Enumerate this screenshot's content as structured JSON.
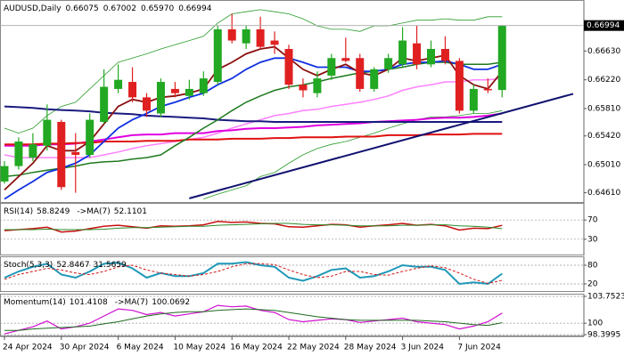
{
  "chart_data": [
    {
      "type": "candlestick",
      "symbol": "AUDUSD,Daily",
      "ohlc_labels": [
        "0.66075",
        "0.67002",
        "0.65970",
        "0.66994"
      ],
      "categories": [
        "24 Apr 2024",
        null,
        null,
        null,
        "30 Apr 2024",
        null,
        null,
        null,
        "6 May 2024",
        null,
        null,
        null,
        "10 May 2024",
        null,
        null,
        null,
        "16 May 2024",
        null,
        null,
        null,
        "22 May 2024",
        null,
        null,
        null,
        "28 May 2024",
        null,
        null,
        null,
        "3 Jun 2024",
        null,
        null,
        null,
        "7 Jun 2024",
        null,
        null,
        null
      ],
      "open": [
        0.6477,
        0.6499,
        0.6511,
        0.6528,
        0.6562,
        0.6519,
        0.6515,
        0.6562,
        0.6609,
        0.6619,
        0.6597,
        0.6574,
        0.6609,
        0.6599,
        0.6603,
        0.6619,
        0.6694,
        0.6674,
        0.6694,
        0.6678,
        0.6666,
        0.6615,
        0.6603,
        0.6628,
        0.6653,
        0.6653,
        0.6609,
        0.6637,
        0.6644,
        0.6674,
        0.6644,
        0.6666,
        0.6649,
        0.6578,
        0.6609,
        0.66075
      ],
      "high": [
        0.6506,
        0.654,
        0.6546,
        0.6587,
        0.6565,
        0.6546,
        0.6574,
        0.6637,
        0.6644,
        0.664,
        0.6603,
        0.6624,
        0.6619,
        0.6622,
        0.6634,
        0.6699,
        0.6716,
        0.6699,
        0.6712,
        0.6691,
        0.6672,
        0.6624,
        0.6634,
        0.6659,
        0.6682,
        0.6659,
        0.664,
        0.6659,
        0.6697,
        0.6699,
        0.6678,
        0.6684,
        0.6653,
        0.6615,
        0.6624,
        0.67002
      ],
      "low": [
        0.6474,
        0.6494,
        0.6506,
        0.6521,
        0.6465,
        0.6461,
        0.6511,
        0.6559,
        0.6603,
        0.659,
        0.6569,
        0.6569,
        0.6597,
        0.6594,
        0.6599,
        0.6615,
        0.6674,
        0.6666,
        0.6666,
        0.6659,
        0.6609,
        0.6597,
        0.6597,
        0.6622,
        0.6647,
        0.6605,
        0.6605,
        0.6632,
        0.664,
        0.6637,
        0.664,
        0.6644,
        0.6574,
        0.6574,
        0.6603,
        0.6597
      ],
      "close": [
        0.6499,
        0.6534,
        0.653,
        0.6565,
        0.6469,
        0.6515,
        0.6565,
        0.6612,
        0.6622,
        0.6597,
        0.6578,
        0.6619,
        0.6603,
        0.6609,
        0.6624,
        0.6694,
        0.6678,
        0.6694,
        0.6669,
        0.6672,
        0.6615,
        0.6607,
        0.6624,
        0.6653,
        0.6649,
        0.6609,
        0.6637,
        0.6653,
        0.6678,
        0.6644,
        0.6666,
        0.6649,
        0.6578,
        0.6609,
        0.6607,
        0.66994
      ],
      "up_color": "#22a822",
      "down_color": "#e02020",
      "ylim": [
        0.6449,
        0.6732
      ],
      "yticks": [
        {
          "value": 0.6663,
          "label": "0.66630"
        },
        {
          "value": 0.6622,
          "label": "0.66220"
        },
        {
          "value": 0.6581,
          "label": "0.65810"
        },
        {
          "value": 0.6542,
          "label": "0.65420"
        },
        {
          "value": 0.6501,
          "label": "0.65010"
        },
        {
          "value": 0.6461,
          "label": "0.64610"
        }
      ],
      "lines": [
        {
          "color": "#2a9a2a",
          "width": 0.8,
          "values": [
            0.6553,
            0.6546,
            0.6553,
            0.6571,
            0.6584,
            0.659,
            0.6609,
            0.6628,
            0.6647,
            0.6653,
            0.6659,
            0.6666,
            0.6672,
            0.6678,
            0.6684,
            0.6703,
            0.6716,
            0.6719,
            0.6722,
            0.6719,
            0.6716,
            0.6709,
            0.6699,
            0.6694,
            0.6694,
            0.6691,
            0.6699,
            0.6699,
            0.6703,
            0.6707,
            0.6707,
            0.6709,
            0.6707,
            0.6707,
            0.6712,
            0.6712
          ]
        },
        {
          "color": "#2a9a2a",
          "width": 0.8,
          "values": [
            null,
            null,
            null,
            null,
            null,
            null,
            null,
            null,
            null,
            null,
            null,
            null,
            null,
            null,
            0.6452,
            0.6459,
            0.6465,
            0.6471,
            0.6484,
            0.649,
            0.6503,
            0.6515,
            0.6524,
            0.653,
            0.6534,
            0.654,
            0.6546,
            0.6553,
            0.6559,
            0.6565,
            0.6569,
            0.6569,
            0.6571,
            0.6574,
            0.6574,
            0.6578
          ]
        },
        {
          "color": "#ff80ff",
          "width": 1.5,
          "values": [
            0.6515,
            0.6511,
            0.6511,
            0.6511,
            0.6511,
            0.6511,
            0.6511,
            0.6515,
            0.6519,
            0.6524,
            0.6528,
            0.6531,
            0.6534,
            0.6537,
            0.654,
            0.6546,
            0.6553,
            0.6559,
            0.6565,
            0.6571,
            0.6574,
            0.6578,
            0.658,
            0.6584,
            0.6587,
            0.659,
            0.6594,
            0.6599,
            0.6607,
            0.6612,
            0.6615,
            0.6619,
            0.6619,
            0.6622,
            0.6622,
            0.6624
          ]
        },
        {
          "color": "#e000e0",
          "width": 2,
          "values": [
            0.6528,
            0.6528,
            0.6528,
            0.653,
            0.653,
            0.6531,
            0.6534,
            0.6537,
            0.654,
            0.6543,
            0.6544,
            0.6544,
            0.6546,
            0.6546,
            0.6546,
            0.6549,
            0.655,
            0.6552,
            0.6553,
            0.6553,
            0.6554,
            0.6555,
            0.6557,
            0.6558,
            0.6559,
            0.656,
            0.6562,
            0.6563,
            0.6564,
            0.6565,
            0.6567,
            0.6568,
            0.6568,
            0.6569,
            0.6571,
            0.6574
          ]
        },
        {
          "color": "#e01010",
          "width": 2,
          "values": [
            0.653,
            0.653,
            0.653,
            0.6531,
            0.6531,
            0.6532,
            0.6532,
            0.6534,
            0.6534,
            0.6534,
            0.6535,
            0.6535,
            0.6535,
            0.6537,
            0.6537,
            0.6537,
            0.6538,
            0.6538,
            0.6538,
            0.6539,
            0.6539,
            0.654,
            0.654,
            0.654,
            0.6541,
            0.6541,
            0.6541,
            0.6543,
            0.6543,
            0.6543,
            0.6544,
            0.6544,
            0.6544,
            0.6545,
            0.6545,
            0.6545
          ]
        },
        {
          "color": "#1a1a80",
          "width": 2,
          "values": [
            0.6584,
            0.6583,
            0.6582,
            0.658,
            0.6579,
            0.6578,
            0.6577,
            0.6575,
            0.6574,
            0.6573,
            0.6571,
            0.657,
            0.6569,
            0.6568,
            0.6567,
            0.6565,
            0.6564,
            0.6563,
            0.6563,
            0.6562,
            0.6562,
            0.6562,
            0.6562,
            0.6562,
            0.6562,
            0.6562,
            0.6562,
            0.6562,
            0.6562,
            0.6562,
            0.6562,
            0.6562,
            0.6562,
            0.6562,
            0.6562,
            0.6562
          ]
        },
        {
          "color": "#1e7a1e",
          "width": 1.5,
          "values": [
            0.6484,
            0.6486,
            0.649,
            0.6493,
            0.6496,
            0.6499,
            0.6503,
            0.6505,
            0.6506,
            0.6509,
            0.6511,
            0.6515,
            0.6528,
            0.654,
            0.6553,
            0.6565,
            0.6578,
            0.659,
            0.6599,
            0.6607,
            0.6612,
            0.6615,
            0.6619,
            0.6624,
            0.6628,
            0.6632,
            0.6634,
            0.6637,
            0.664,
            0.6644,
            0.6647,
            0.6647,
            0.6644,
            0.6644,
            0.6644,
            0.6647
          ]
        },
        {
          "color": "#1030e0",
          "width": 1.8,
          "values": [
            0.6452,
            0.6465,
            0.6477,
            0.649,
            0.6496,
            0.6503,
            0.6515,
            0.6534,
            0.6553,
            0.6565,
            0.6574,
            0.6584,
            0.659,
            0.6597,
            0.6603,
            0.6615,
            0.6624,
            0.6637,
            0.6647,
            0.6653,
            0.6653,
            0.6647,
            0.664,
            0.664,
            0.664,
            0.6634,
            0.6634,
            0.6637,
            0.6644,
            0.6647,
            0.6647,
            0.6649,
            0.6644,
            0.6637,
            0.6637,
            0.6644
          ]
        },
        {
          "color": "#8b1010",
          "width": 1.8,
          "values": [
            0.6465,
            0.6484,
            0.6503,
            0.6528,
            0.6521,
            0.6521,
            0.6534,
            0.6559,
            0.6584,
            0.6594,
            0.659,
            0.6597,
            0.6599,
            0.6603,
            0.6609,
            0.6637,
            0.6647,
            0.6659,
            0.6666,
            0.6669,
            0.6653,
            0.6637,
            0.6628,
            0.6637,
            0.6644,
            0.6632,
            0.6628,
            0.6637,
            0.6653,
            0.6649,
            0.6653,
            0.6657,
            0.6628,
            0.6615,
            0.6609,
            0.6634
          ]
        }
      ],
      "trendline": {
        "color": "#101070",
        "x": [
          13,
          40
        ],
        "values": [
          0.6453,
          0.6602
        ]
      }
    },
    {
      "type": "line",
      "ylim": [
        0,
        100
      ],
      "yticks": [
        30,
        70
      ],
      "series": [
        {
          "name": "RSI(14)",
          "color": "#c81010",
          "width": 1.5,
          "values": [
            48,
            50,
            52,
            55,
            45,
            47,
            52,
            57,
            59,
            56,
            53,
            58,
            57,
            58,
            60,
            67,
            65,
            66,
            63,
            62,
            56,
            55,
            58,
            61,
            60,
            55,
            58,
            60,
            63,
            59,
            61,
            58,
            49,
            53,
            52,
            58.8249
          ]
        },
        {
          "name": "->MA(7)",
          "color": "#2a8a2a",
          "width": 1,
          "values": [
            50,
            50,
            50,
            51,
            50,
            50,
            50,
            51,
            53,
            54,
            54,
            55,
            56,
            57,
            57,
            59,
            60,
            61,
            62,
            63,
            63,
            61,
            60,
            60,
            59,
            58,
            58,
            58,
            59,
            59,
            60,
            60,
            58,
            57,
            55,
            52.1101
          ]
        }
      ]
    },
    {
      "type": "line",
      "ylim": [
        0,
        100
      ],
      "yticks": [
        20,
        80
      ],
      "series": [
        {
          "name": "Stoch(5,3,3)",
          "color": "#1f98b8",
          "width": 2,
          "values": [
            40,
            60,
            75,
            85,
            50,
            40,
            60,
            85,
            88,
            70,
            40,
            55,
            45,
            45,
            55,
            85,
            85,
            90,
            80,
            75,
            40,
            30,
            45,
            65,
            70,
            40,
            45,
            60,
            80,
            75,
            75,
            65,
            20,
            25,
            20,
            52.8467
          ]
        },
        {
          "color": "#d01818",
          "width": 1,
          "dash": true,
          "values": [
            35,
            50,
            60,
            70,
            65,
            55,
            50,
            60,
            75,
            80,
            65,
            55,
            50,
            45,
            50,
            60,
            75,
            85,
            85,
            82,
            65,
            50,
            40,
            45,
            60,
            60,
            50,
            48,
            60,
            70,
            78,
            72,
            55,
            35,
            22,
            31.5659
          ]
        }
      ]
    },
    {
      "type": "line",
      "ylim": [
        98.3995,
        103.7523
      ],
      "yticks": [
        98.3995,
        100,
        103.7523
      ],
      "series": [
        {
          "name": "Momentum(14)",
          "color": "#d010d0",
          "width": 1.2,
          "values": [
            98.5,
            99,
            99.5,
            100.3,
            99.2,
            99.5,
            100,
            101,
            102,
            101.8,
            101.2,
            101.5,
            101,
            101.3,
            101.6,
            102.5,
            102.3,
            102.4,
            101.8,
            101.5,
            100.5,
            100.2,
            100.4,
            100.6,
            100.5,
            100.1,
            100.3,
            100.5,
            100.7,
            100.2,
            100,
            99.8,
            99.2,
            99.6,
            100.2,
            101.4108
          ]
        },
        {
          "name": "->MA(7)",
          "color": "#1e6a1e",
          "width": 1,
          "values": [
            99,
            99,
            99.2,
            99.3,
            99.4,
            99.5,
            99.6,
            99.9,
            100.2,
            100.6,
            101,
            101.3,
            101.5,
            101.6,
            101.6,
            101.8,
            101.9,
            102,
            101.9,
            101.8,
            101.5,
            101.2,
            100.9,
            100.7,
            100.5,
            100.4,
            100.4,
            100.4,
            100.4,
            100.4,
            100.3,
            100.2,
            100,
            99.8,
            99.7,
            100.0692
          ]
        }
      ]
    }
  ]
}
